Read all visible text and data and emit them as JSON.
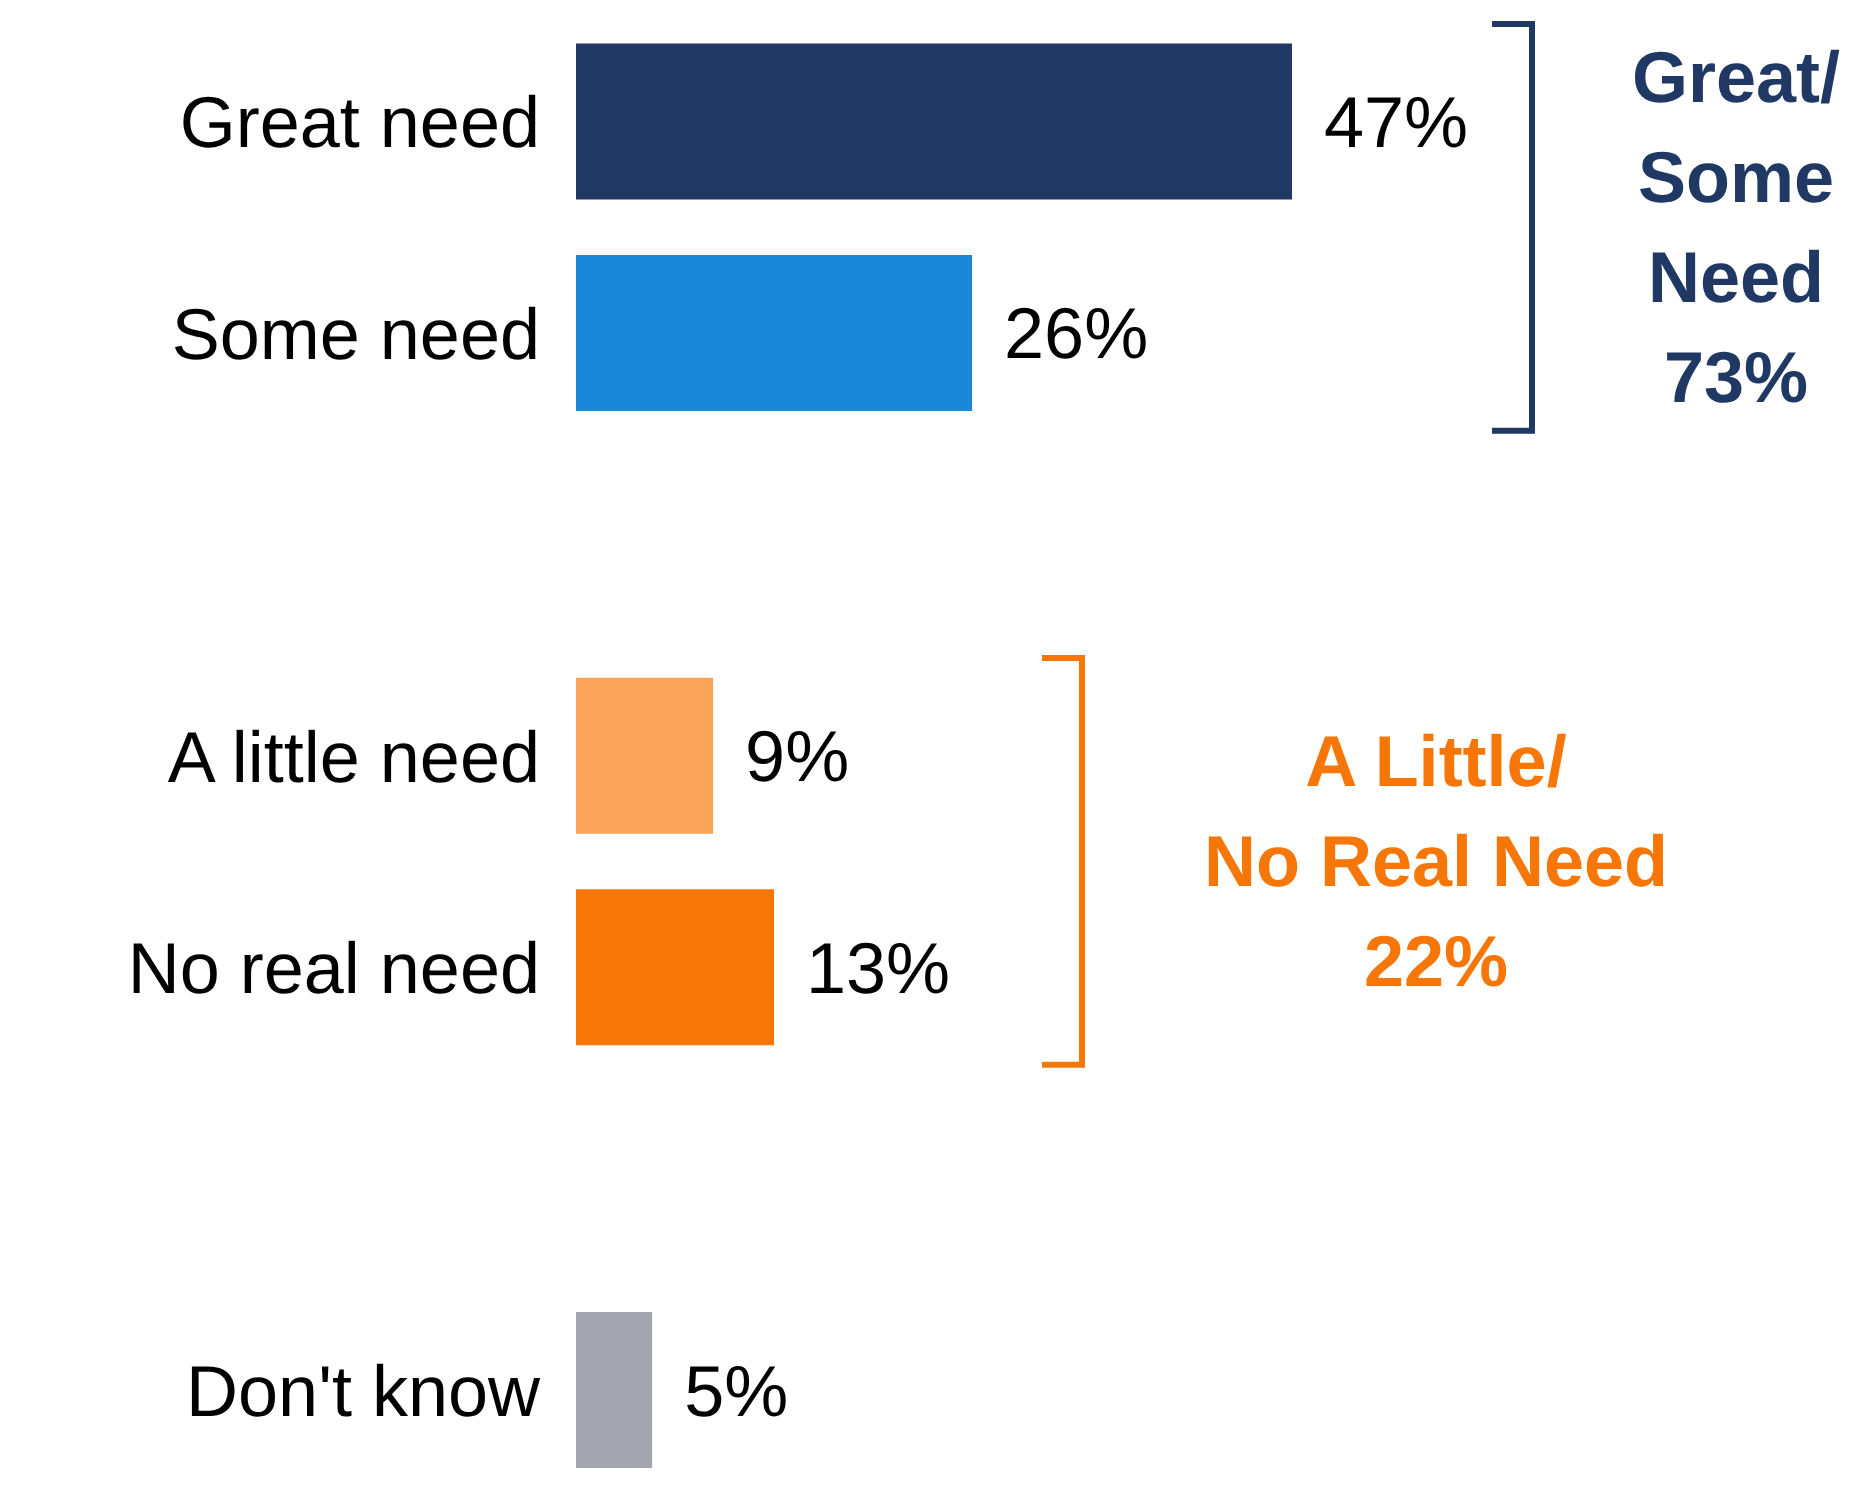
{
  "chart_data": {
    "type": "bar",
    "orientation": "horizontal",
    "categories": [
      "Great need",
      "Some need",
      null,
      "A little need",
      "No real need",
      null,
      "Don't know"
    ],
    "values": [
      47,
      26,
      null,
      9,
      13,
      null,
      5
    ],
    "value_labels": [
      "47%",
      "26%",
      null,
      "9%",
      "13%",
      null,
      "5%"
    ],
    "colors": [
      "#1f3864",
      "#1a88d8",
      null,
      "#fba55a",
      "#f77608",
      null,
      "#a5a5b0"
    ],
    "annotations": [
      "Great/\nSome\nNeed\n73%",
      "A Little/\nNo Real Need\n22%"
    ],
    "grid": false,
    "legend": false
  }
}
